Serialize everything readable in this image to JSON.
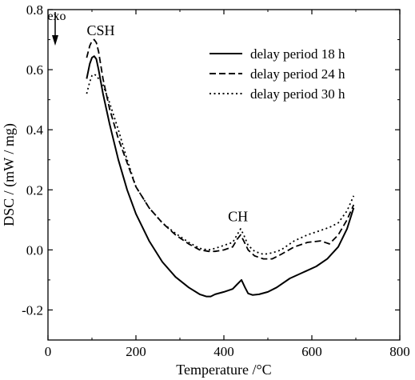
{
  "chart_data": {
    "type": "line",
    "xlabel": "Temperature /°C",
    "ylabel": "DSC / (mW / mg)",
    "xlim": [
      0,
      800
    ],
    "ylim": [
      -0.3,
      0.8
    ],
    "xticks": [
      0,
      200,
      400,
      600,
      800
    ],
    "yticks": [
      -0.2,
      0.0,
      0.2,
      0.4,
      0.6,
      0.8
    ],
    "ytick_labels": [
      "-0.2",
      "0.0",
      "0.2",
      "0.4",
      "0.6",
      "0.8"
    ],
    "grid": false,
    "legend_position": "top-right",
    "annotations": [
      {
        "text": "CSH",
        "x": 120,
        "y": 0.715
      },
      {
        "text": "CH",
        "x": 432,
        "y": 0.095
      },
      {
        "text": "exo",
        "x": 20,
        "y": 0.765
      }
    ],
    "series": [
      {
        "name": "delay period 18 h",
        "style": "solid",
        "x": [
          88,
          95,
          100,
          105,
          110,
          115,
          125,
          140,
          160,
          180,
          200,
          230,
          260,
          290,
          320,
          345,
          360,
          370,
          380,
          400,
          420,
          430,
          440,
          448,
          455,
          465,
          480,
          500,
          520,
          550,
          580,
          610,
          635,
          660,
          680,
          695
        ],
        "y": [
          0.57,
          0.62,
          0.64,
          0.645,
          0.635,
          0.6,
          0.52,
          0.42,
          0.3,
          0.2,
          0.12,
          0.03,
          -0.04,
          -0.09,
          -0.125,
          -0.148,
          -0.155,
          -0.155,
          -0.148,
          -0.14,
          -0.13,
          -0.115,
          -0.1,
          -0.125,
          -0.145,
          -0.15,
          -0.148,
          -0.14,
          -0.125,
          -0.095,
          -0.075,
          -0.055,
          -0.03,
          0.01,
          0.07,
          0.14
        ]
      },
      {
        "name": "delay period 24 h",
        "style": "dashed",
        "x": [
          88,
          95,
          100,
          105,
          110,
          115,
          125,
          140,
          160,
          180,
          200,
          230,
          260,
          290,
          320,
          345,
          365,
          380,
          400,
          420,
          430,
          438,
          445,
          455,
          470,
          490,
          510,
          530,
          560,
          590,
          620,
          640,
          660,
          680,
          695
        ],
        "y": [
          0.64,
          0.68,
          0.695,
          0.7,
          0.69,
          0.66,
          0.57,
          0.47,
          0.37,
          0.29,
          0.21,
          0.14,
          0.09,
          0.05,
          0.02,
          0.0,
          -0.005,
          -0.005,
          0.0,
          0.01,
          0.035,
          0.05,
          0.03,
          0.0,
          -0.02,
          -0.03,
          -0.03,
          -0.015,
          0.01,
          0.025,
          0.03,
          0.02,
          0.05,
          0.1,
          0.15
        ]
      },
      {
        "name": "delay period 30 h",
        "style": "dotted",
        "x": [
          88,
          95,
          100,
          105,
          110,
          115,
          125,
          140,
          160,
          180,
          200,
          230,
          260,
          290,
          320,
          345,
          365,
          380,
          400,
          420,
          430,
          438,
          445,
          455,
          470,
          490,
          510,
          530,
          560,
          590,
          620,
          640,
          660,
          680,
          695
        ],
        "y": [
          0.52,
          0.56,
          0.58,
          0.585,
          0.58,
          0.57,
          0.55,
          0.49,
          0.4,
          0.3,
          0.21,
          0.14,
          0.09,
          0.055,
          0.025,
          0.005,
          0.0,
          0.005,
          0.015,
          0.025,
          0.05,
          0.07,
          0.05,
          0.015,
          -0.005,
          -0.015,
          -0.01,
          0.0,
          0.03,
          0.05,
          0.065,
          0.075,
          0.09,
          0.13,
          0.18
        ]
      }
    ]
  }
}
